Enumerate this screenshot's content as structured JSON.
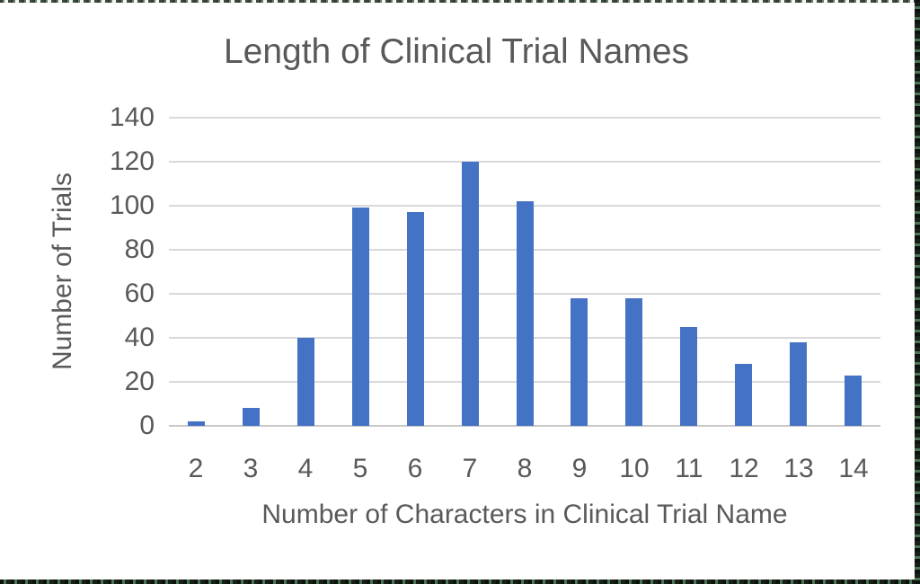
{
  "chart_data": {
    "type": "bar",
    "title": "Length of Clinical Trial Names",
    "xlabel": "Number of Characters in Clinical Trial Name",
    "ylabel": "Number of Trials",
    "categories": [
      "2",
      "3",
      "4",
      "5",
      "6",
      "7",
      "8",
      "9",
      "10",
      "11",
      "12",
      "13",
      "14"
    ],
    "values": [
      2,
      8,
      40,
      99,
      97,
      120,
      102,
      58,
      58,
      45,
      28,
      38,
      23
    ],
    "ylim": [
      0,
      140
    ],
    "yticks": [
      0,
      20,
      40,
      60,
      80,
      100,
      120,
      140
    ],
    "grid": true,
    "legend": "none",
    "bar_color": "#4472c4",
    "gridline_color": "#d9d9d9",
    "text_color": "#595959",
    "background_color": "#ffffff",
    "frame_color": "#2f4f3a"
  }
}
